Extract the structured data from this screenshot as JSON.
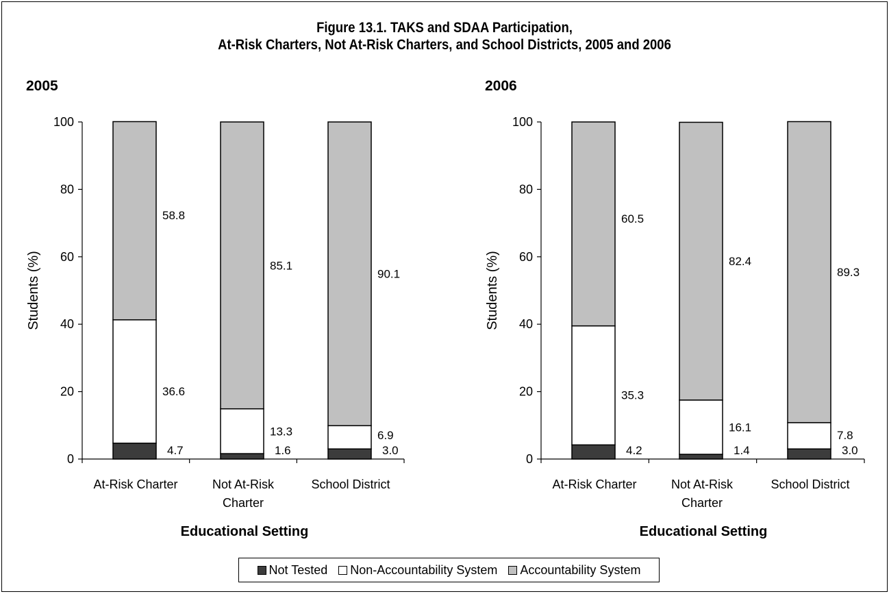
{
  "title": {
    "line1": "Figure 13.1. TAKS and SDAA Participation,",
    "line2": "At-Risk Charters, Not At-Risk Charters, and School Districts, 2005 and 2006"
  },
  "legend": {
    "items": [
      {
        "label": "Not Tested",
        "color": "#3c3c3c"
      },
      {
        "label": "Non-Accountability System",
        "color": "#ffffff"
      },
      {
        "label": "Accountability System",
        "color": "#c0c0c0"
      }
    ]
  },
  "chart_data": [
    {
      "type": "bar",
      "stacked": true,
      "title": "2005",
      "xlabel": "Educational Setting",
      "ylabel": "Students (%)",
      "ylim": [
        0,
        100
      ],
      "yticks": [
        "0",
        "20",
        "40",
        "60",
        "80",
        "100"
      ],
      "categories": [
        "At-Risk Charter",
        "Not At-Risk Charter",
        "School District"
      ],
      "series": [
        {
          "name": "Not Tested",
          "values": [
            4.7,
            1.6,
            3.0
          ],
          "labels": [
            "4.7",
            "1.6",
            "3.0"
          ]
        },
        {
          "name": "Non-Accountability System",
          "values": [
            36.6,
            13.3,
            6.9
          ],
          "labels": [
            "36.6",
            "13.3",
            "6.9"
          ]
        },
        {
          "name": "Accountability System",
          "values": [
            58.8,
            85.1,
            90.1
          ],
          "labels": [
            "58.8",
            "85.1",
            "90.1"
          ]
        }
      ]
    },
    {
      "type": "bar",
      "stacked": true,
      "title": "2006",
      "xlabel": "Educational Setting",
      "ylabel": "Students (%)",
      "ylim": [
        0,
        100
      ],
      "yticks": [
        "0",
        "20",
        "40",
        "60",
        "80",
        "100"
      ],
      "categories": [
        "At-Risk Charter",
        "Not At-Risk Charter",
        "School District"
      ],
      "series": [
        {
          "name": "Not Tested",
          "values": [
            4.2,
            1.4,
            3.0
          ],
          "labels": [
            "4.2",
            "1.4",
            "3.0"
          ]
        },
        {
          "name": "Non-Accountability System",
          "values": [
            35.3,
            16.1,
            7.8
          ],
          "labels": [
            "35.3",
            "16.1",
            "7.8"
          ]
        },
        {
          "name": "Accountability System",
          "values": [
            60.5,
            82.4,
            89.3
          ],
          "labels": [
            "60.5",
            "82.4",
            "89.3"
          ]
        }
      ]
    }
  ]
}
